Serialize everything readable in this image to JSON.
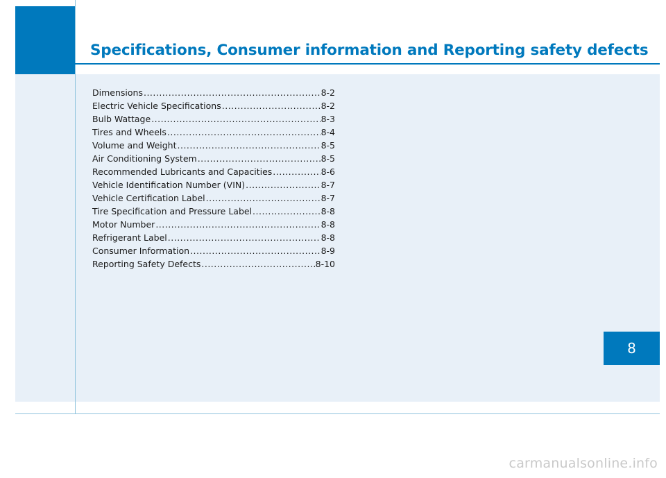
{
  "header": {
    "title": "Specifications, Consumer information and Reporting safety defects"
  },
  "toc": {
    "entries": [
      {
        "label": "Dimensions",
        "page": "8-2"
      },
      {
        "label": "Electric Vehicle Specifications",
        "page": "8-2"
      },
      {
        "label": "Bulb Wattage",
        "page": "8-3"
      },
      {
        "label": "Tires and Wheels",
        "page": "8-4"
      },
      {
        "label": "Volume and Weight",
        "page": "8-5"
      },
      {
        "label": "Air Conditioning System",
        "page": "8-5"
      },
      {
        "label": "Recommended Lubricants and Capacities",
        "page": "8-6"
      },
      {
        "label": "Vehicle Identification Number (VIN)",
        "page": "8-7"
      },
      {
        "label": "Vehicle Certification Label",
        "page": "8-7"
      },
      {
        "label": "Tire Specification and Pressure Label",
        "page": "8-8"
      },
      {
        "label": "Motor Number",
        "page": "8-8"
      },
      {
        "label": "Refrigerant Label",
        "page": "8-8"
      },
      {
        "label": "Consumer Information",
        "page": "8-9"
      },
      {
        "label": "Reporting Safety Defects",
        "page": "8-10"
      }
    ]
  },
  "chapter_tab": {
    "number": "8"
  },
  "watermark": {
    "text": "carmanualsonline.info"
  },
  "colors": {
    "accent": "#0079bd",
    "panel": "#e8f0f8"
  }
}
